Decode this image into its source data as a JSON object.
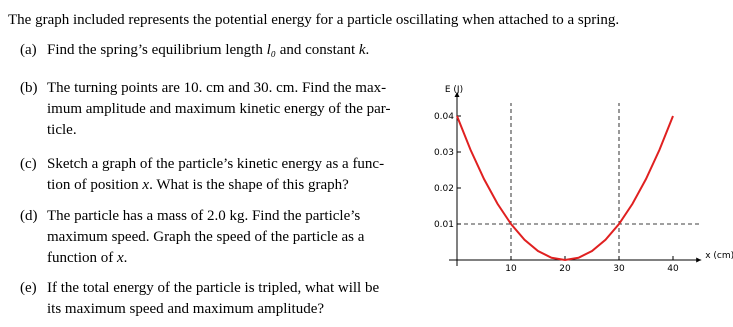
{
  "intro": "The graph included represents the potential energy for a particle oscillating when attached to a spring.",
  "items": [
    {
      "label": "(a)",
      "lines": [
        [
          "Find the spring’s equilibrium length ",
          "l₀",
          " and constant ",
          "k",
          "."
        ]
      ]
    },
    {
      "label": "(b)",
      "lines": [
        [
          "The turning points are 10. cm and 30. cm. Find the max-"
        ],
        [
          "imum amplitude and maximum kinetic energy of the par-"
        ],
        [
          "ticle."
        ]
      ]
    },
    {
      "label": "(c)",
      "lines": [
        [
          "Sketch a graph of the particle’s kinetic energy as a func-"
        ],
        [
          "tion of position ",
          "x",
          ". What is the shape of this graph?"
        ]
      ]
    },
    {
      "label": "(d)",
      "lines": [
        [
          "The particle has a mass of 2.0 kg. Find the particle’s"
        ],
        [
          "maximum speed. Graph the speed of the particle as a"
        ],
        [
          "function of ",
          "x",
          "."
        ]
      ]
    },
    {
      "label": "(e)",
      "lines": [
        [
          "If the total energy of the particle is tripled, what will be"
        ],
        [
          "its maximum speed and maximum amplitude?"
        ]
      ]
    }
  ],
  "chart_data": {
    "type": "line",
    "y_label": "E (J)",
    "x_label": "x (cm)",
    "x": [
      0,
      2.5,
      5,
      7.5,
      10,
      12.5,
      15,
      17.5,
      20,
      22.5,
      25,
      27.5,
      30,
      32.5,
      35,
      37.5,
      40
    ],
    "values": [
      0.04,
      0.030625,
      0.0225,
      0.015625,
      0.01,
      0.005625,
      0.0025,
      0.000625,
      0,
      0.000625,
      0.0025,
      0.005625,
      0.01,
      0.015625,
      0.0225,
      0.030625,
      0.04
    ],
    "color": "#e02020",
    "xlim": [
      0,
      43
    ],
    "ylim": [
      0,
      0.045
    ],
    "xticks": [
      10,
      20,
      30,
      40
    ],
    "yticks": [
      0.01,
      0.02,
      0.03,
      0.04
    ],
    "hlines": [
      0.01
    ],
    "vlines": [
      10,
      30
    ]
  }
}
